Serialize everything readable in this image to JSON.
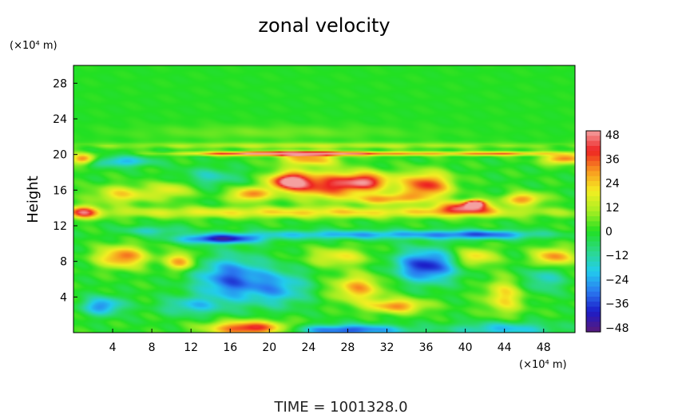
{
  "chart_data": {
    "type": "heatmap",
    "title": "zonal velocity",
    "ylabel": "Height",
    "x_unit_label": "(×10⁴ m)",
    "y_unit_label": "(×10⁴ m)",
    "footer": "TIME  =  1001328.0",
    "xlim": [
      0,
      51.2
    ],
    "ylim": [
      0,
      30
    ],
    "x_ticks": [
      4,
      8,
      12,
      16,
      20,
      24,
      28,
      32,
      36,
      40,
      44,
      48
    ],
    "y_ticks": [
      4,
      8,
      12,
      16,
      20,
      24,
      28
    ],
    "colorbar": {
      "vmin": -50,
      "vmax": 50,
      "ticks": [
        48,
        36,
        24,
        12,
        0,
        -12,
        -24,
        -36,
        -48
      ],
      "colors": [
        "#5a1a7a",
        "#1c1cc8",
        "#2a7af0",
        "#22ccee",
        "#2cd88a",
        "#22e022",
        "#a8ee22",
        "#f4ee22",
        "#f89820",
        "#ee2222",
        "#f4a0a0"
      ]
    },
    "features": [
      {
        "x": 18,
        "y": 0.5,
        "sx": 4,
        "sy": 0.8,
        "value": 44
      },
      {
        "x": 28,
        "y": 0.3,
        "sx": 6,
        "sy": 0.6,
        "value": -34
      },
      {
        "x": 44,
        "y": 0.4,
        "sx": 5,
        "sy": 0.8,
        "value": -22
      },
      {
        "x": 3,
        "y": 3,
        "sx": 2,
        "sy": 1,
        "value": -28
      },
      {
        "x": 12,
        "y": 3,
        "sx": 3,
        "sy": 1,
        "value": -18
      },
      {
        "x": 16,
        "y": 6,
        "sx": 3.5,
        "sy": 2.5,
        "value": -32
      },
      {
        "x": 21,
        "y": 5,
        "sx": 3,
        "sy": 2,
        "value": -22
      },
      {
        "x": 29,
        "y": 5,
        "sx": 2.5,
        "sy": 1.5,
        "value": 28
      },
      {
        "x": 33,
        "y": 3,
        "sx": 3,
        "sy": 0.8,
        "value": 30
      },
      {
        "x": 36,
        "y": 7.5,
        "sx": 3,
        "sy": 1.8,
        "value": -40
      },
      {
        "x": 44,
        "y": 4,
        "sx": 2,
        "sy": 2,
        "value": 22
      },
      {
        "x": 48,
        "y": 6,
        "sx": 2,
        "sy": 1.5,
        "value": -16
      },
      {
        "x": 5,
        "y": 8.5,
        "sx": 2.5,
        "sy": 1.2,
        "value": 34
      },
      {
        "x": 11,
        "y": 8,
        "sx": 1.5,
        "sy": 1,
        "value": 30
      },
      {
        "x": 27,
        "y": 8.5,
        "sx": 3,
        "sy": 1,
        "value": 20
      },
      {
        "x": 41,
        "y": 8.5,
        "sx": 2,
        "sy": 1,
        "value": 24
      },
      {
        "x": 49,
        "y": 8.5,
        "sx": 2,
        "sy": 1,
        "value": 32
      },
      {
        "x": 30,
        "y": 11,
        "sx": 14,
        "sy": 0.5,
        "value": -24
      },
      {
        "x": 15,
        "y": 10.5,
        "sx": 4,
        "sy": 0.5,
        "value": -40
      },
      {
        "x": 42,
        "y": 11,
        "sx": 5,
        "sy": 0.5,
        "value": -22
      },
      {
        "x": 8,
        "y": 11.5,
        "sx": 3,
        "sy": 0.5,
        "value": -14
      },
      {
        "x": 25,
        "y": 13.5,
        "sx": 26,
        "sy": 0.6,
        "value": 22
      },
      {
        "x": 1,
        "y": 13.5,
        "sx": 1.5,
        "sy": 0.7,
        "value": 36
      },
      {
        "x": 40,
        "y": 14,
        "sx": 3,
        "sy": 0.7,
        "value": 38
      },
      {
        "x": 41,
        "y": 14.5,
        "sx": 1,
        "sy": 0.4,
        "value": 48
      },
      {
        "x": 46,
        "y": 15,
        "sx": 2,
        "sy": 0.7,
        "value": 30
      },
      {
        "x": 22,
        "y": 17,
        "sx": 2,
        "sy": 1,
        "value": 46
      },
      {
        "x": 26,
        "y": 16.5,
        "sx": 4,
        "sy": 1.5,
        "value": 38
      },
      {
        "x": 30,
        "y": 17,
        "sx": 2.5,
        "sy": 1,
        "value": 34
      },
      {
        "x": 36,
        "y": 16.5,
        "sx": 2.5,
        "sy": 1.5,
        "value": 40
      },
      {
        "x": 18,
        "y": 15.5,
        "sx": 2,
        "sy": 0.8,
        "value": 32
      },
      {
        "x": 5,
        "y": 15.5,
        "sx": 3,
        "sy": 1,
        "value": 22
      },
      {
        "x": 10,
        "y": 16,
        "sx": 2,
        "sy": 1,
        "value": 18
      },
      {
        "x": 14,
        "y": 17.5,
        "sx": 3,
        "sy": 1,
        "value": -14
      },
      {
        "x": 32,
        "y": 15,
        "sx": 3,
        "sy": 0.6,
        "value": 28
      },
      {
        "x": 1,
        "y": 19.5,
        "sx": 1.2,
        "sy": 0.6,
        "value": 34
      },
      {
        "x": 5,
        "y": 19.2,
        "sx": 3,
        "sy": 0.6,
        "value": -22
      },
      {
        "x": 50,
        "y": 19.5,
        "sx": 2,
        "sy": 0.6,
        "value": 34
      },
      {
        "x": 24,
        "y": 19.5,
        "sx": 3,
        "sy": 0.8,
        "value": 28
      },
      {
        "x": 20,
        "y": 20.1,
        "sx": 8,
        "sy": 0.22,
        "value": 44
      },
      {
        "x": 30,
        "y": 20.1,
        "sx": 12,
        "sy": 0.22,
        "value": 30
      },
      {
        "x": 44,
        "y": 20.1,
        "sx": 5,
        "sy": 0.22,
        "value": 26
      },
      {
        "x": 25,
        "y": 21,
        "sx": 26,
        "sy": 0.35,
        "value": 12
      },
      {
        "x": 20,
        "y": 22.5,
        "sx": 14,
        "sy": 0.8,
        "value": 6
      }
    ]
  }
}
